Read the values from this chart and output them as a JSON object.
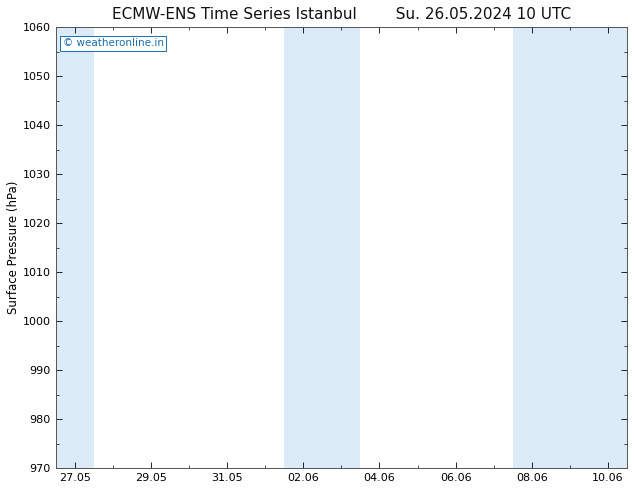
{
  "title": "ECMW-ENS Time Series Istanbul        Su. 26.05.2024 10 UTC",
  "ylabel": "Surface Pressure (hPa)",
  "ylim": [
    970,
    1060
  ],
  "yticks": [
    970,
    980,
    990,
    1000,
    1010,
    1020,
    1030,
    1040,
    1050,
    1060
  ],
  "xtick_labels": [
    "27.05",
    "29.05",
    "31.05",
    "02.06",
    "04.06",
    "06.06",
    "08.06",
    "10.06"
  ],
  "xtick_positions": [
    0,
    2,
    4,
    6,
    8,
    10,
    12,
    14
  ],
  "xlim": [
    -0.5,
    14.5
  ],
  "blue_band_color": "#daeaf7",
  "bg_color": "#ffffff",
  "watermark": "© weatheronline.in",
  "watermark_color": "#1a6faf",
  "title_fontsize": 11,
  "axis_label_fontsize": 8.5,
  "tick_fontsize": 8,
  "blue_bands": [
    {
      "start": -0.5,
      "end": 0.5
    },
    {
      "start": 5.5,
      "end": 7.5
    },
    {
      "start": 11.5,
      "end": 14.5
    }
  ]
}
